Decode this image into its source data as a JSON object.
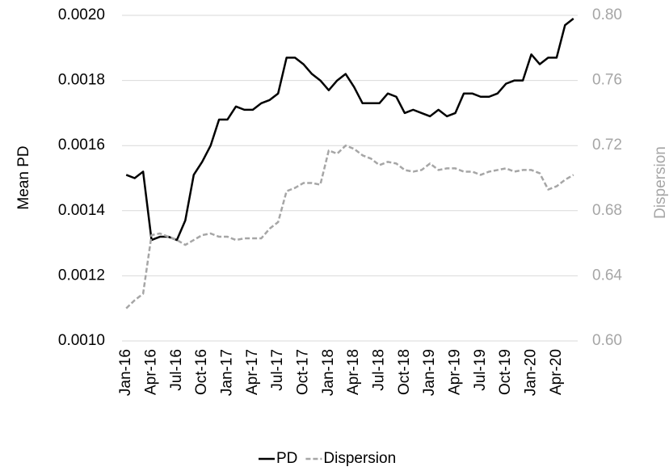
{
  "chart_data": {
    "type": "line",
    "categories": [
      "Jan-16",
      null,
      null,
      "Apr-16",
      null,
      null,
      "Jul-16",
      null,
      null,
      "Oct-16",
      null,
      null,
      "Jan-17",
      null,
      null,
      "Apr-17",
      null,
      null,
      "Jul-17",
      null,
      null,
      "Oct-17",
      null,
      null,
      "Jan-18",
      null,
      null,
      "Apr-18",
      null,
      null,
      "Jul-18",
      null,
      null,
      "Oct-18",
      null,
      null,
      "Jan-19",
      null,
      null,
      "Apr-19",
      null,
      null,
      "Jul-19",
      null,
      null,
      "Oct-19",
      null,
      null,
      "Jan-20",
      null,
      null,
      "Apr-20",
      null,
      null
    ],
    "series": [
      {
        "name": "PD",
        "color": "#000000",
        "dash": false,
        "values": [
          0.00151,
          0.0015,
          0.00152,
          0.00131,
          0.00132,
          0.00132,
          0.00131,
          0.00137,
          0.00151,
          0.00155,
          0.0016,
          0.00168,
          0.00168,
          0.00172,
          0.00171,
          0.00171,
          0.00173,
          0.00174,
          0.00176,
          0.00187,
          0.00187,
          0.00185,
          0.00182,
          0.0018,
          0.00177,
          0.0018,
          0.00182,
          0.00178,
          0.00173,
          0.00173,
          0.00173,
          0.00176,
          0.00175,
          0.0017,
          0.00171,
          0.0017,
          0.00169,
          0.00171,
          0.00169,
          0.0017,
          0.00176,
          0.00176,
          0.00175,
          0.00175,
          0.00176,
          0.00179,
          0.0018,
          0.0018,
          0.00188,
          0.00185,
          0.00187,
          0.00187,
          0.00197,
          0.00199
        ]
      },
      {
        "name": "Dispersion",
        "color": "#a6a6a6",
        "dash": true,
        "axis": "y2",
        "values": [
          0.62,
          0.625,
          0.629,
          0.665,
          0.666,
          0.664,
          0.662,
          0.659,
          0.662,
          0.665,
          0.666,
          0.664,
          0.664,
          0.662,
          0.663,
          0.663,
          0.663,
          0.669,
          0.673,
          0.692,
          0.694,
          0.697,
          0.697,
          0.696,
          0.717,
          0.715,
          0.72,
          0.718,
          0.714,
          0.712,
          0.708,
          0.71,
          0.709,
          0.705,
          0.704,
          0.705,
          0.709,
          0.705,
          0.706,
          0.706,
          0.704,
          0.704,
          0.702,
          0.704,
          0.705,
          0.706,
          0.704,
          0.705,
          0.705,
          0.703,
          0.693,
          0.695,
          0.699,
          0.702
        ]
      }
    ],
    "y_label": "Mean PD",
    "y2_label": "Dispersion",
    "ylim": [
      0.001,
      0.002
    ],
    "yticks": [
      {
        "value": 0.001,
        "label": "0.0010"
      },
      {
        "value": 0.0012,
        "label": "0.0012"
      },
      {
        "value": 0.0014,
        "label": "0.0014"
      },
      {
        "value": 0.0016,
        "label": "0.0016"
      },
      {
        "value": 0.0018,
        "label": "0.0018"
      },
      {
        "value": 0.002,
        "label": "0.0020"
      }
    ],
    "y2lim": [
      0.6,
      0.8
    ],
    "y2ticks": [
      {
        "value": 0.6,
        "label": "0.60"
      },
      {
        "value": 0.64,
        "label": "0.64"
      },
      {
        "value": 0.68,
        "label": "0.68"
      },
      {
        "value": 0.72,
        "label": "0.72"
      },
      {
        "value": 0.76,
        "label": "0.76"
      },
      {
        "value": 0.8,
        "label": "0.80"
      }
    ],
    "grid": true,
    "legend": "bottom"
  }
}
